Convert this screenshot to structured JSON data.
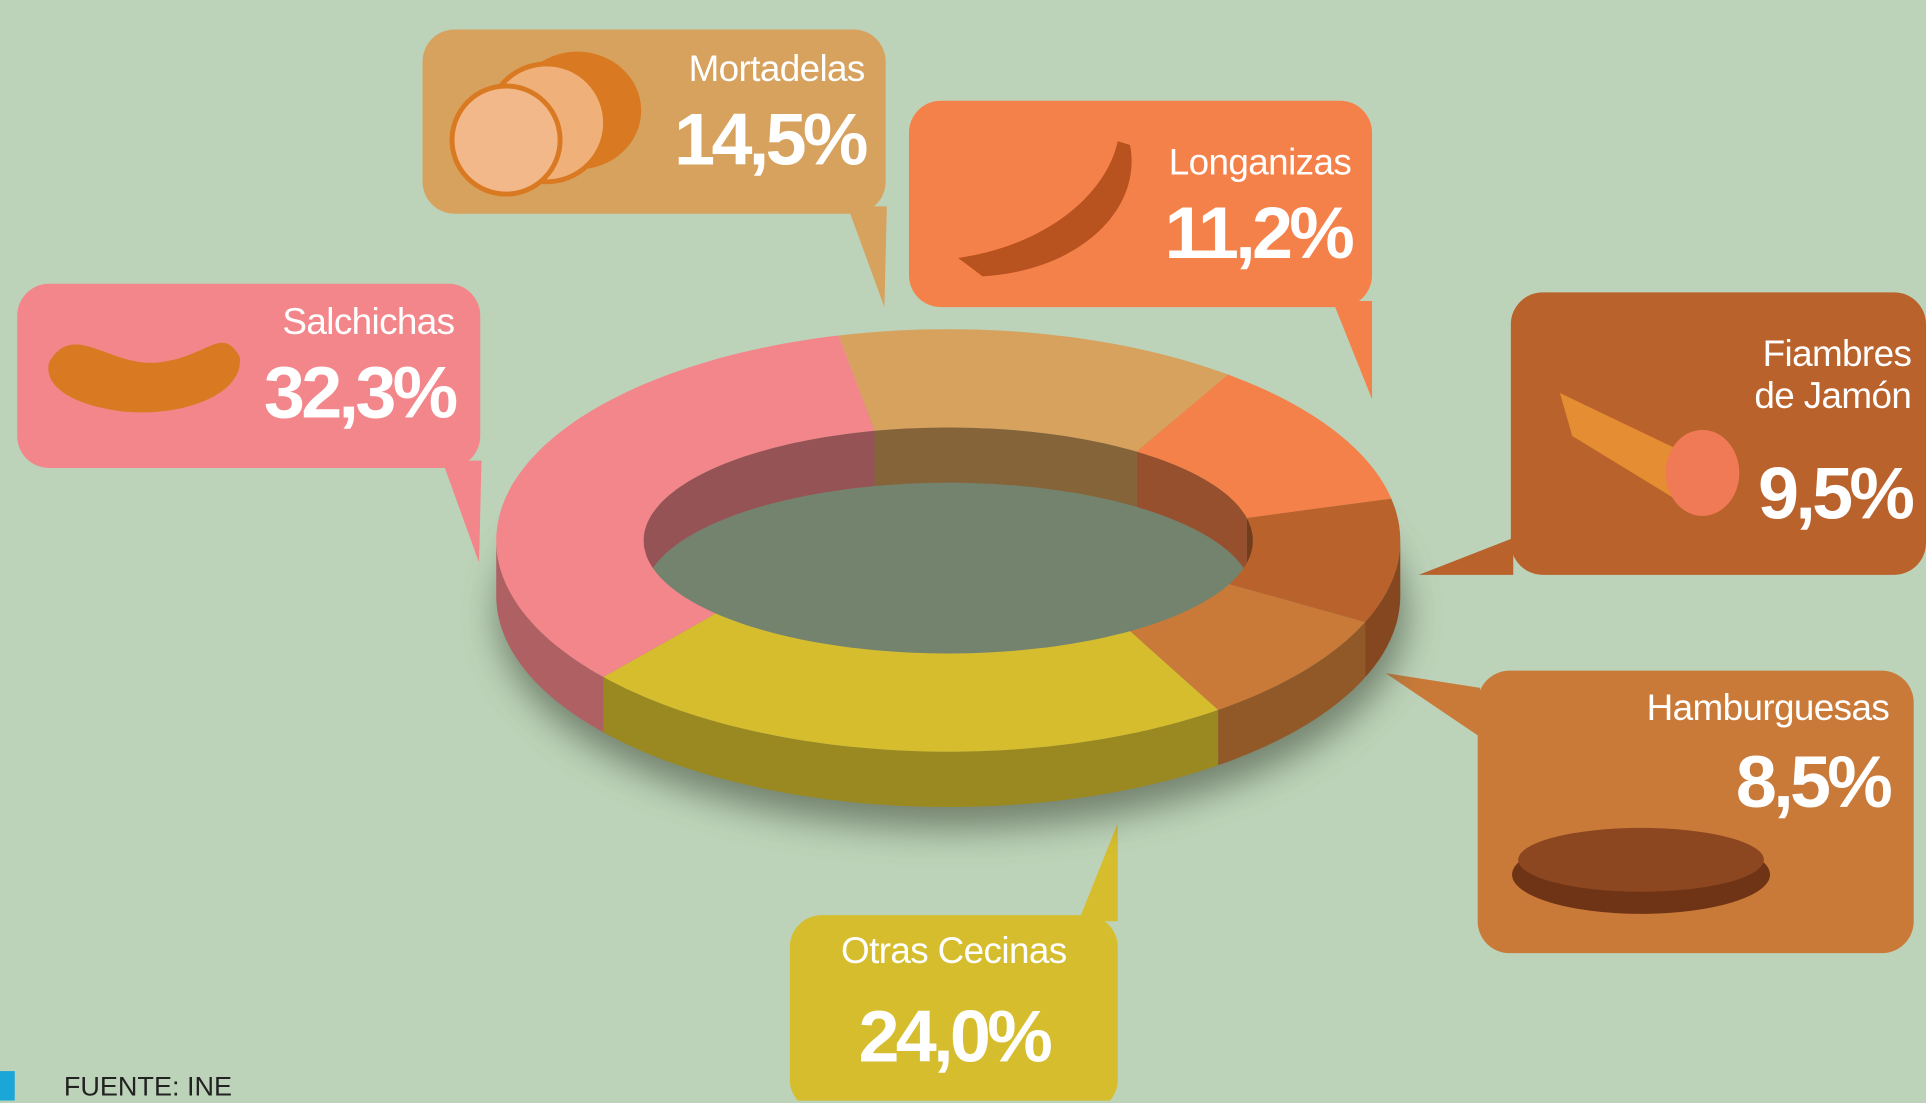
{
  "chart_data": {
    "type": "donut",
    "categories": [
      "Salchichas",
      "Otras Cecinas",
      "Hamburguesas",
      "Fiambres de Jamón",
      "Longanizas",
      "Mortadelas"
    ],
    "values": [
      32.3,
      24.0,
      8.5,
      9.5,
      11.2,
      14.5
    ],
    "value_labels": [
      "32,3%",
      "24,0%",
      "8,5%",
      "9,5%",
      "11,2%",
      "14,5%"
    ],
    "colors": [
      "#f2868a",
      "#d6bd2e",
      "#c97a38",
      "#b9622c",
      "#f4814a",
      "#d7a25e"
    ],
    "source": "FUENTE: INE"
  }
}
